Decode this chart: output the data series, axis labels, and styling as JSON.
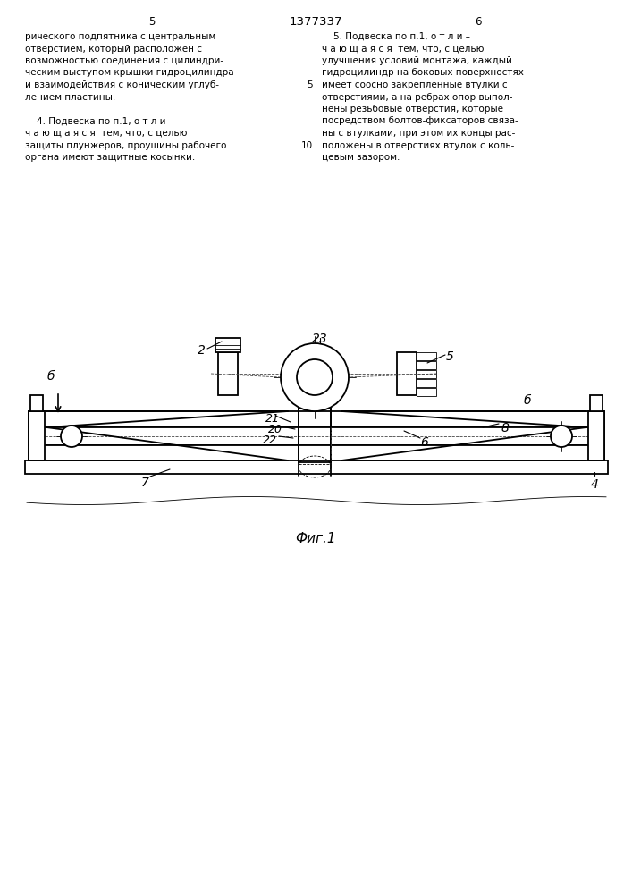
{
  "title": "1377337",
  "page_left": "5",
  "page_right": "6",
  "fig_label": "Фиг.1",
  "bg_color": "#ffffff",
  "line_color": "#000000",
  "text_color": "#000000",
  "text_left_line1": "рического подпятника с центральным",
  "text_left_line2": "отверстием, который расположен с",
  "text_left_line3": "возможностью соединения с цилиндри-",
  "text_left_line4": "ческим выступом крышки гидроцилиндра",
  "text_left_line5": "и взаимодействия с коническим углуб-",
  "text_left_line6": "лением пластины.",
  "text_left_line7": "    4. Подвеска по п.1, о т л и –",
  "text_left_line8": "ч а ю щ а я с я  тем, что, с целью",
  "text_left_line9": "защиты плунжеров, проушины рабочего",
  "text_left_line10": "органа имеют защитные косынки.",
  "text_right_line1": "    5. Подвеска по п.1, о т л и –",
  "text_right_line2": "ч а ю щ а я с я  тем, что, с целью",
  "text_right_line3": "улучшения условий монтажа, каждый",
  "text_right_line4": "гидроцилиндр на боковых поверхностях",
  "text_right_line5": "имеет соосно закрепленные втулки с",
  "text_right_line6": "отверстиями, а на ребрах опор выпол-",
  "text_right_line7": "нены резьбовые отверстия, которые",
  "text_right_line8": "посредством болтов-фиксаторов связа-",
  "text_right_line9": "ны с втулками, при этом их концы рас-",
  "text_right_line10": "положены в отверстиях втулок с коль-",
  "text_right_line11": "цевым зазором."
}
